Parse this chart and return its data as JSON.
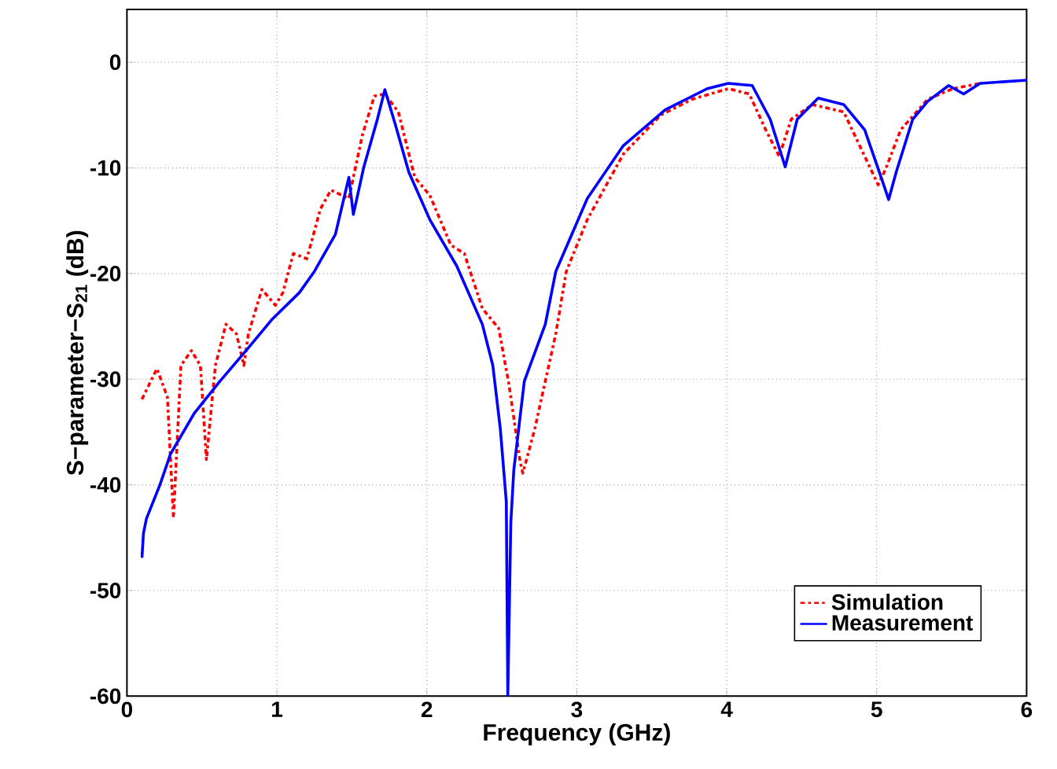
{
  "chart_data": {
    "type": "line",
    "xlabel": "Frequency  (GHz)",
    "ylabel": "S−parameter−S$_{21}$ (dB)",
    "xlim": [
      0,
      6
    ],
    "ylim": [
      -60,
      5
    ],
    "xticks": [
      0,
      1,
      2,
      3,
      4,
      5,
      6
    ],
    "yticks": [
      -60,
      -50,
      -40,
      -30,
      -20,
      -10,
      0
    ],
    "grid": true,
    "legend": "bottom right",
    "series": [
      {
        "name": "Simulation",
        "color": "#ff0000",
        "line_style": "dashdot",
        "x": [
          0.1,
          0.2,
          0.27,
          0.31,
          0.36,
          0.43,
          0.49,
          0.53,
          0.59,
          0.66,
          0.73,
          0.78,
          0.81,
          0.9,
          0.99,
          1.04,
          1.11,
          1.2,
          1.29,
          1.36,
          1.48,
          1.57,
          1.65,
          1.72,
          1.81,
          1.92,
          2.02,
          2.16,
          2.25,
          2.37,
          2.48,
          2.55,
          2.62,
          2.64,
          2.72,
          2.86,
          2.93,
          3.07,
          3.31,
          3.56,
          3.77,
          4.01,
          4.15,
          4.26,
          4.35,
          4.43,
          4.57,
          4.78,
          4.92,
          5.01,
          5.06,
          5.16,
          5.34,
          5.51,
          5.69
        ],
        "values": [
          -31.9,
          -29.0,
          -31.7,
          -43.1,
          -28.7,
          -27.3,
          -28.7,
          -37.6,
          -28.7,
          -24.8,
          -25.7,
          -28.7,
          -25.7,
          -21.5,
          -23.0,
          -21.8,
          -18.1,
          -18.6,
          -13.9,
          -12.1,
          -12.9,
          -6.9,
          -3.2,
          -3.0,
          -4.7,
          -10.9,
          -12.6,
          -17.3,
          -18.1,
          -23.3,
          -25.2,
          -30.7,
          -37.6,
          -38.9,
          -34.7,
          -25.7,
          -19.8,
          -14.9,
          -8.7,
          -5.0,
          -3.5,
          -2.5,
          -3.0,
          -6.4,
          -8.9,
          -5.4,
          -4.0,
          -4.7,
          -8.9,
          -11.6,
          -10.1,
          -6.4,
          -3.5,
          -2.5,
          -2.0
        ]
      },
      {
        "name": "Measurement",
        "color": "#0000ff",
        "line_style": "solid",
        "x": [
          0.1,
          0.11,
          0.13,
          0.22,
          0.29,
          0.45,
          0.62,
          0.8,
          0.97,
          1.15,
          1.25,
          1.39,
          1.48,
          1.51,
          1.58,
          1.67,
          1.72,
          1.79,
          1.88,
          2.02,
          2.2,
          2.37,
          2.44,
          2.49,
          2.53,
          2.54,
          2.56,
          2.58,
          2.65,
          2.79,
          2.86,
          3.07,
          3.31,
          3.59,
          3.87,
          4.01,
          4.17,
          4.29,
          4.39,
          4.47,
          4.61,
          4.78,
          4.92,
          5.03,
          5.08,
          5.13,
          5.24,
          5.34,
          5.48,
          5.58,
          5.69,
          6.0
        ],
        "values": [
          -46.9,
          -44.6,
          -43.2,
          -40.0,
          -37.1,
          -33.2,
          -30.2,
          -27.2,
          -24.3,
          -21.8,
          -19.8,
          -16.3,
          -10.9,
          -14.4,
          -9.9,
          -5.4,
          -2.6,
          -5.9,
          -10.4,
          -14.9,
          -19.3,
          -24.8,
          -28.7,
          -34.7,
          -41.6,
          -60,
          -43.6,
          -38.6,
          -30.2,
          -24.8,
          -19.8,
          -12.9,
          -7.9,
          -4.5,
          -2.5,
          -2.0,
          -2.2,
          -5.4,
          -9.9,
          -5.4,
          -3.4,
          -4.0,
          -6.4,
          -10.9,
          -13.0,
          -10.4,
          -5.4,
          -3.7,
          -2.2,
          -3.0,
          -2.0,
          -1.7
        ]
      }
    ]
  }
}
